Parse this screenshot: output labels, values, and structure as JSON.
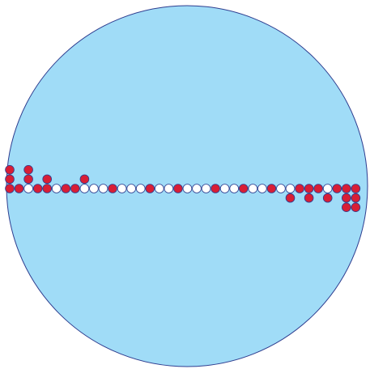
{
  "colors": {
    "disc_fill": "#a0dcf7",
    "disc_stroke": "#2e3d8f",
    "red_bead": "#d81e35",
    "white_bead": "#ffffff",
    "bead_stroke": "#2e3d8f"
  },
  "row": {
    "beads": [
      "red",
      "red",
      "white",
      "red",
      "red",
      "white",
      "red",
      "red",
      "white",
      "white",
      "white",
      "red",
      "white",
      "white",
      "white",
      "red",
      "white",
      "white",
      "red",
      "white",
      "white",
      "white",
      "red",
      "white",
      "white",
      "red",
      "white",
      "white",
      "red",
      "white",
      "white",
      "red",
      "red",
      "red",
      "white",
      "red",
      "red",
      "red"
    ]
  },
  "columns_above": [
    3,
    3,
    2,
    2
  ],
  "columns_below": [
    1,
    1,
    1,
    2,
    2
  ]
}
